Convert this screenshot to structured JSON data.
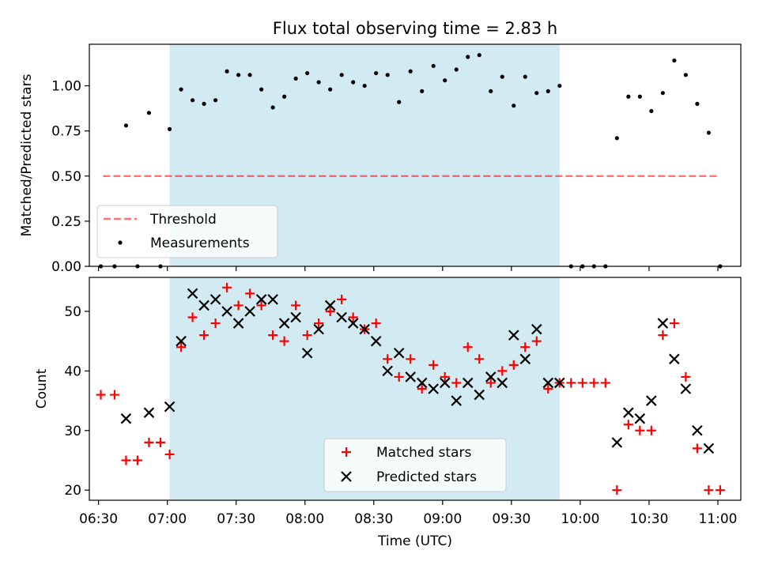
{
  "chart_data": {
    "title": "Flux total observing time = 2.83 h",
    "xlabel": "Time (UTC)",
    "x_ticks": [
      "06:30",
      "07:00",
      "07:30",
      "08:00",
      "08:30",
      "09:00",
      "09:30",
      "10:00",
      "10:30",
      "11:00"
    ],
    "x_range": [
      "06:26",
      "11:10"
    ],
    "observing_window": [
      "07:01",
      "09:51"
    ],
    "colors": {
      "window": "#add8e6",
      "threshold": "#ff0000",
      "measurements": "#000000",
      "matched": "#ff0000",
      "predicted": "#000000"
    },
    "panels": [
      {
        "type": "scatter",
        "ylabel": "Matched/Predicted stars",
        "ylim": [
          0,
          1.23
        ],
        "y_ticks": [
          "0.00",
          "0.25",
          "0.50",
          "0.75",
          "1.00"
        ],
        "legend_position": "lower-left",
        "threshold": {
          "name": "Threshold",
          "y": 0.5,
          "x_start": "06:32",
          "x_end": "11:00"
        },
        "series": [
          {
            "name": "Measurements",
            "points": [
              [
                "06:31",
                0.0
              ],
              [
                "06:37",
                0.0
              ],
              [
                "06:42",
                0.78
              ],
              [
                "06:47",
                0.0
              ],
              [
                "06:52",
                0.85
              ],
              [
                "06:57",
                0.0
              ],
              [
                "07:01",
                0.76
              ],
              [
                "07:06",
                0.98
              ],
              [
                "07:11",
                0.92
              ],
              [
                "07:16",
                0.9
              ],
              [
                "07:21",
                0.92
              ],
              [
                "07:26",
                1.08
              ],
              [
                "07:31",
                1.06
              ],
              [
                "07:36",
                1.06
              ],
              [
                "07:41",
                0.98
              ],
              [
                "07:46",
                0.88
              ],
              [
                "07:51",
                0.94
              ],
              [
                "07:56",
                1.04
              ],
              [
                "08:01",
                1.07
              ],
              [
                "08:06",
                1.02
              ],
              [
                "08:11",
                0.98
              ],
              [
                "08:16",
                1.06
              ],
              [
                "08:21",
                1.02
              ],
              [
                "08:26",
                1.0
              ],
              [
                "08:31",
                1.07
              ],
              [
                "08:36",
                1.06
              ],
              [
                "08:41",
                0.91
              ],
              [
                "08:46",
                1.08
              ],
              [
                "08:51",
                0.97
              ],
              [
                "08:56",
                1.11
              ],
              [
                "09:01",
                1.03
              ],
              [
                "09:06",
                1.09
              ],
              [
                "09:11",
                1.16
              ],
              [
                "09:16",
                1.17
              ],
              [
                "09:21",
                0.97
              ],
              [
                "09:26",
                1.05
              ],
              [
                "09:31",
                0.89
              ],
              [
                "09:36",
                1.05
              ],
              [
                "09:41",
                0.96
              ],
              [
                "09:46",
                0.97
              ],
              [
                "09:51",
                1.0
              ],
              [
                "09:56",
                0.0
              ],
              [
                "10:01",
                0.0
              ],
              [
                "10:06",
                0.0
              ],
              [
                "10:11",
                0.0
              ],
              [
                "10:16",
                0.71
              ],
              [
                "10:21",
                0.94
              ],
              [
                "10:26",
                0.94
              ],
              [
                "10:31",
                0.86
              ],
              [
                "10:36",
                0.96
              ],
              [
                "10:41",
                1.14
              ],
              [
                "10:46",
                1.06
              ],
              [
                "10:51",
                0.9
              ],
              [
                "10:56",
                0.74
              ],
              [
                "11:01",
                0.0
              ]
            ]
          }
        ]
      },
      {
        "type": "scatter",
        "ylabel": "Count",
        "ylim": [
          18.3,
          55.7
        ],
        "y_ticks": [
          "20",
          "30",
          "40",
          "50"
        ],
        "legend_position": "lower-center",
        "series": [
          {
            "name": "Matched stars",
            "marker": "plus",
            "points": [
              [
                "06:31",
                36
              ],
              [
                "06:37",
                36
              ],
              [
                "06:42",
                25
              ],
              [
                "06:47",
                25
              ],
              [
                "06:52",
                28
              ],
              [
                "06:57",
                28
              ],
              [
                "07:01",
                26
              ],
              [
                "07:06",
                44
              ],
              [
                "07:11",
                49
              ],
              [
                "07:16",
                46
              ],
              [
                "07:21",
                48
              ],
              [
                "07:26",
                54
              ],
              [
                "07:31",
                51
              ],
              [
                "07:36",
                53
              ],
              [
                "07:41",
                51
              ],
              [
                "07:46",
                46
              ],
              [
                "07:51",
                45
              ],
              [
                "07:56",
                51
              ],
              [
                "08:01",
                46
              ],
              [
                "08:06",
                48
              ],
              [
                "08:11",
                50
              ],
              [
                "08:16",
                52
              ],
              [
                "08:21",
                49
              ],
              [
                "08:26",
                47
              ],
              [
                "08:31",
                48
              ],
              [
                "08:36",
                42
              ],
              [
                "08:41",
                39
              ],
              [
                "08:46",
                42
              ],
              [
                "08:51",
                37
              ],
              [
                "08:56",
                41
              ],
              [
                "09:01",
                39
              ],
              [
                "09:06",
                38
              ],
              [
                "09:11",
                44
              ],
              [
                "09:16",
                42
              ],
              [
                "09:21",
                38
              ],
              [
                "09:26",
                40
              ],
              [
                "09:31",
                41
              ],
              [
                "09:36",
                44
              ],
              [
                "09:41",
                45
              ],
              [
                "09:46",
                37
              ],
              [
                "09:51",
                38
              ],
              [
                "09:56",
                38
              ],
              [
                "10:01",
                38
              ],
              [
                "10:06",
                38
              ],
              [
                "10:11",
                38
              ],
              [
                "10:16",
                20
              ],
              [
                "10:21",
                31
              ],
              [
                "10:26",
                30
              ],
              [
                "10:31",
                30
              ],
              [
                "10:36",
                46
              ],
              [
                "10:41",
                48
              ],
              [
                "10:46",
                39
              ],
              [
                "10:51",
                27
              ],
              [
                "10:56",
                20
              ],
              [
                "11:01",
                20
              ]
            ]
          },
          {
            "name": "Predicted stars",
            "marker": "x",
            "points": [
              [
                "06:42",
                32
              ],
              [
                "06:52",
                33
              ],
              [
                "07:01",
                34
              ],
              [
                "07:06",
                45
              ],
              [
                "07:11",
                53
              ],
              [
                "07:16",
                51
              ],
              [
                "07:21",
                52
              ],
              [
                "07:26",
                50
              ],
              [
                "07:31",
                48
              ],
              [
                "07:36",
                50
              ],
              [
                "07:41",
                52
              ],
              [
                "07:46",
                52
              ],
              [
                "07:51",
                48
              ],
              [
                "07:56",
                49
              ],
              [
                "08:01",
                43
              ],
              [
                "08:06",
                47
              ],
              [
                "08:11",
                51
              ],
              [
                "08:16",
                49
              ],
              [
                "08:21",
                48
              ],
              [
                "08:26",
                47
              ],
              [
                "08:31",
                45
              ],
              [
                "08:36",
                40
              ],
              [
                "08:41",
                43
              ],
              [
                "08:46",
                39
              ],
              [
                "08:51",
                38
              ],
              [
                "08:56",
                37
              ],
              [
                "09:01",
                38
              ],
              [
                "09:06",
                35
              ],
              [
                "09:11",
                38
              ],
              [
                "09:16",
                36
              ],
              [
                "09:21",
                39
              ],
              [
                "09:26",
                38
              ],
              [
                "09:31",
                46
              ],
              [
                "09:36",
                42
              ],
              [
                "09:41",
                47
              ],
              [
                "09:46",
                38
              ],
              [
                "09:51",
                38
              ],
              [
                "10:16",
                28
              ],
              [
                "10:21",
                33
              ],
              [
                "10:26",
                32
              ],
              [
                "10:31",
                35
              ],
              [
                "10:36",
                48
              ],
              [
                "10:41",
                42
              ],
              [
                "10:46",
                37
              ],
              [
                "10:51",
                30
              ],
              [
                "10:56",
                27
              ]
            ]
          }
        ]
      }
    ]
  }
}
